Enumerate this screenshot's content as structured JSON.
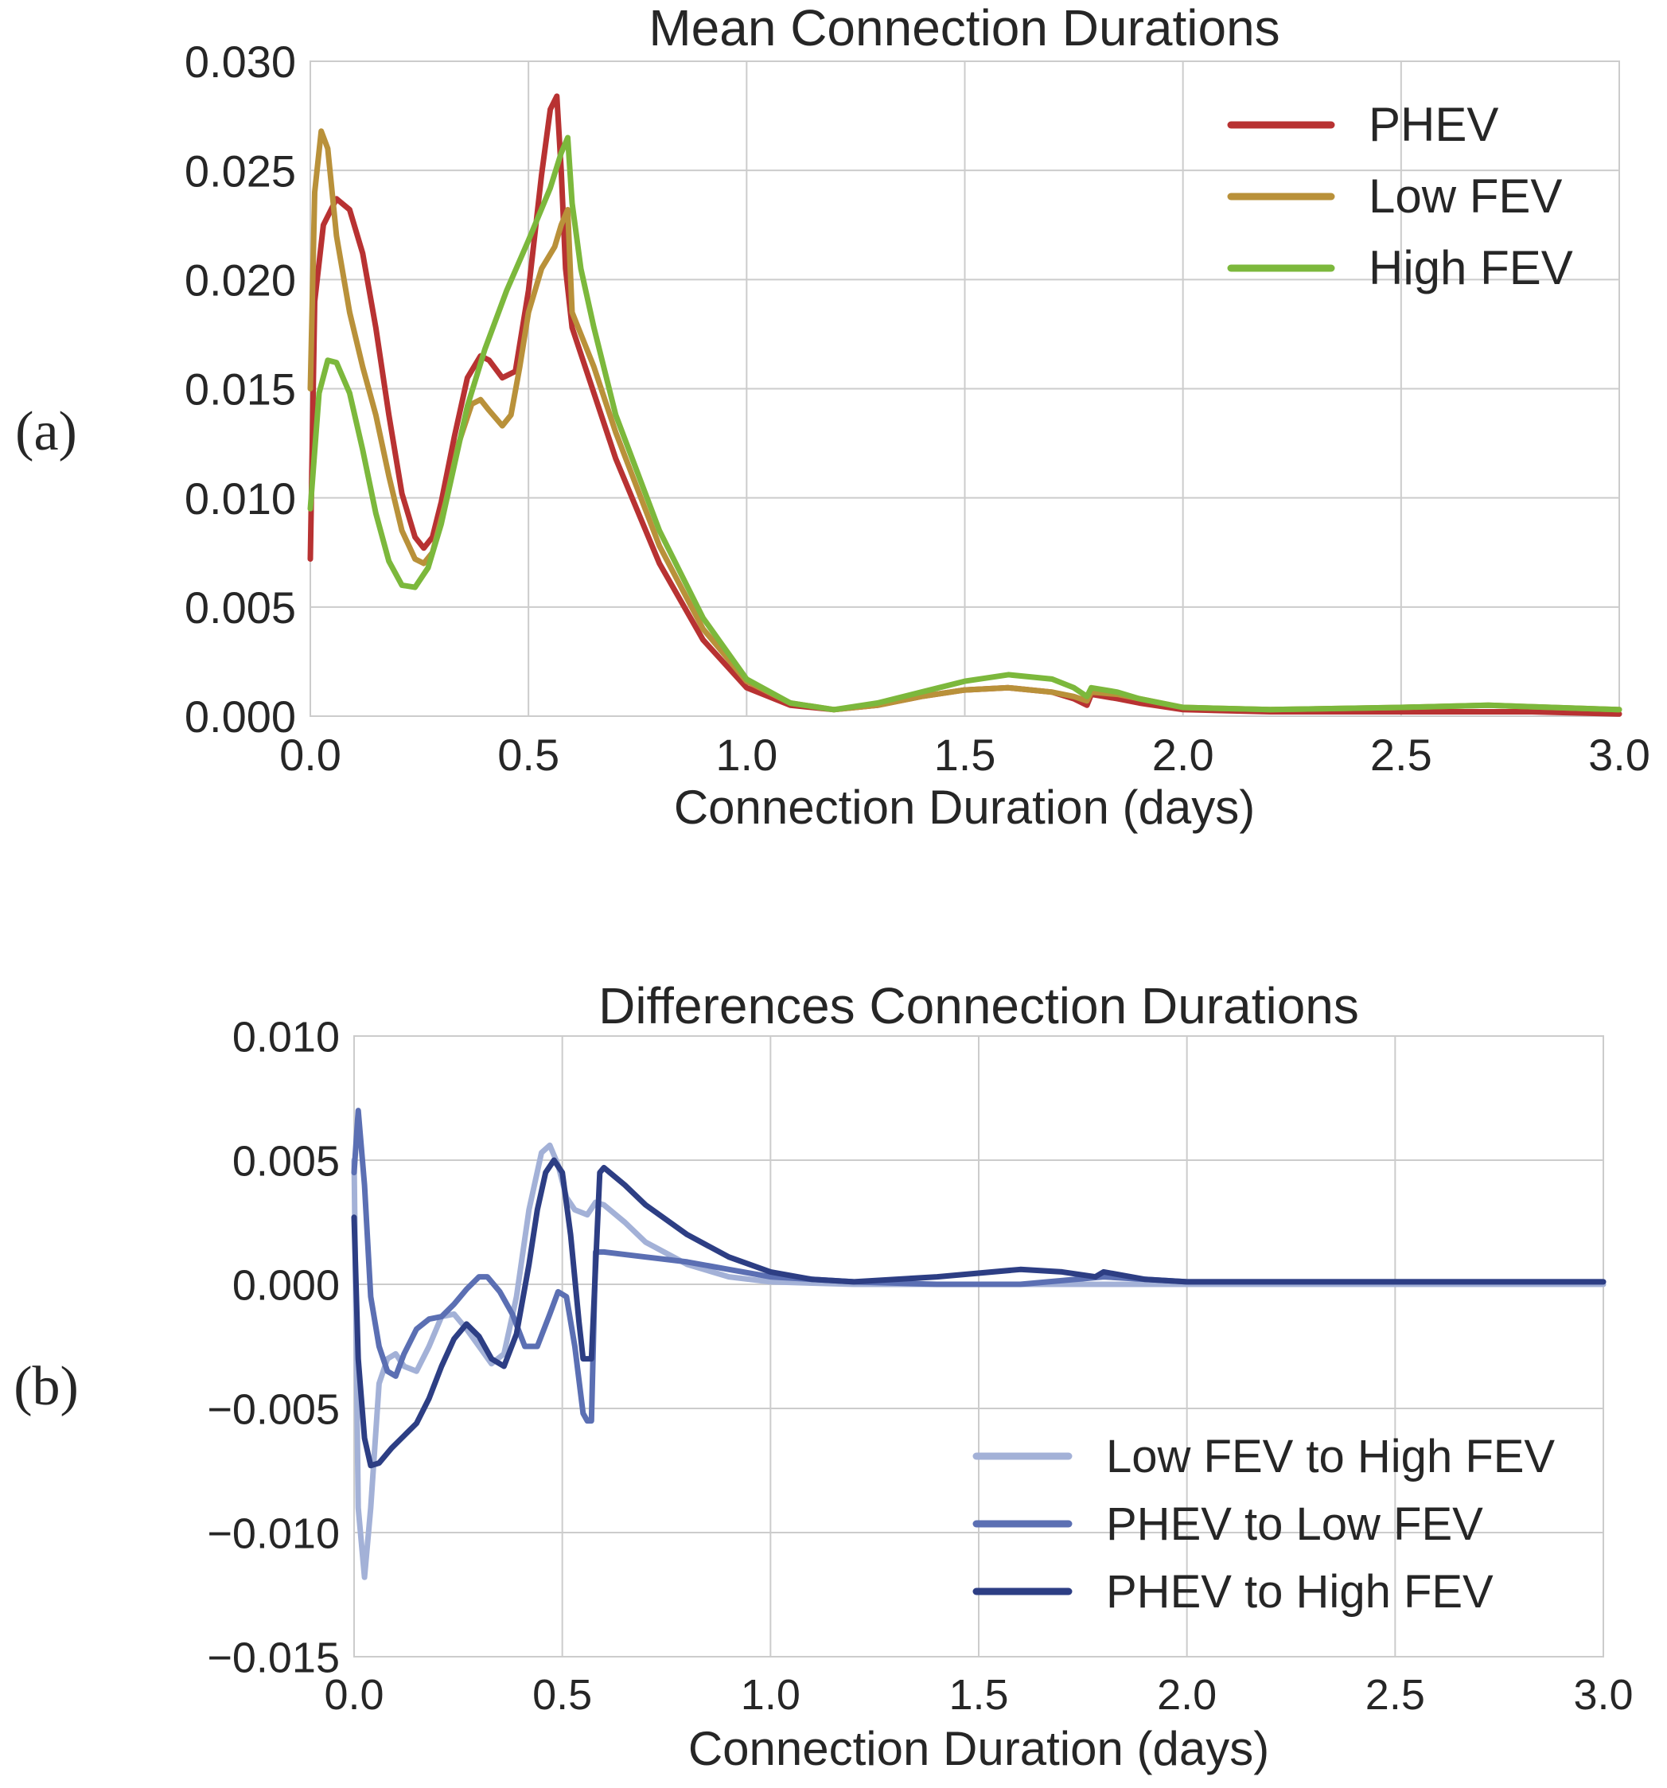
{
  "chart_data": [
    {
      "type": "line",
      "panel_label": "(a)",
      "title": "Mean Connection Durations",
      "xlabel": "Connection Duration (days)",
      "ylabel": "",
      "xlim": [
        0.0,
        3.0
      ],
      "ylim": [
        0.0,
        0.03
      ],
      "xticks": [
        "0.0",
        "0.5",
        "1.0",
        "1.5",
        "2.0",
        "2.5",
        "3.0"
      ],
      "yticks": [
        "0.000",
        "0.005",
        "0.010",
        "0.015",
        "0.020",
        "0.025",
        "0.030"
      ],
      "grid": true,
      "legend_position": "top-right",
      "series": [
        {
          "name": "PHEV",
          "color": "#b83232",
          "x": [
            0.0,
            0.01,
            0.03,
            0.06,
            0.09,
            0.12,
            0.15,
            0.18,
            0.21,
            0.24,
            0.26,
            0.28,
            0.3,
            0.33,
            0.36,
            0.39,
            0.41,
            0.44,
            0.47,
            0.5,
            0.53,
            0.55,
            0.565,
            0.575,
            0.585,
            0.6,
            0.65,
            0.7,
            0.8,
            0.9,
            1.0,
            1.1,
            1.2,
            1.3,
            1.4,
            1.5,
            1.6,
            1.7,
            1.75,
            1.78,
            1.79,
            1.85,
            1.9,
            2.0,
            2.2,
            2.5,
            2.8,
            3.0
          ],
          "y": [
            0.0072,
            0.019,
            0.0225,
            0.0237,
            0.0232,
            0.0212,
            0.0178,
            0.0138,
            0.0102,
            0.0082,
            0.0077,
            0.0082,
            0.0098,
            0.0128,
            0.0155,
            0.0165,
            0.0163,
            0.0155,
            0.0158,
            0.0195,
            0.0248,
            0.0278,
            0.0284,
            0.025,
            0.0205,
            0.0178,
            0.0148,
            0.0118,
            0.007,
            0.0035,
            0.0013,
            0.0005,
            0.0003,
            0.0005,
            0.0009,
            0.0012,
            0.0013,
            0.0011,
            0.0008,
            0.0005,
            0.001,
            0.0008,
            0.0006,
            0.0003,
            0.0002,
            0.0002,
            0.0002,
            0.0001
          ]
        },
        {
          "name": "Low FEV",
          "color": "#b9913a",
          "x": [
            0.0,
            0.01,
            0.025,
            0.04,
            0.06,
            0.09,
            0.12,
            0.15,
            0.18,
            0.21,
            0.24,
            0.26,
            0.28,
            0.31,
            0.34,
            0.37,
            0.39,
            0.41,
            0.44,
            0.46,
            0.48,
            0.5,
            0.53,
            0.56,
            0.575,
            0.59,
            0.6,
            0.65,
            0.7,
            0.8,
            0.9,
            1.0,
            1.1,
            1.2,
            1.3,
            1.4,
            1.5,
            1.6,
            1.7,
            1.75,
            1.78,
            1.79,
            1.85,
            1.9,
            2.0,
            2.2,
            2.5,
            2.7,
            3.0
          ],
          "y": [
            0.015,
            0.024,
            0.0268,
            0.026,
            0.022,
            0.0185,
            0.016,
            0.0138,
            0.011,
            0.0085,
            0.0072,
            0.007,
            0.0075,
            0.0098,
            0.0125,
            0.0143,
            0.0145,
            0.014,
            0.0133,
            0.0138,
            0.016,
            0.0185,
            0.0205,
            0.0215,
            0.0225,
            0.0232,
            0.0185,
            0.016,
            0.013,
            0.0078,
            0.004,
            0.0016,
            0.0006,
            0.0003,
            0.0005,
            0.0009,
            0.0012,
            0.0013,
            0.0011,
            0.0009,
            0.0007,
            0.0011,
            0.001,
            0.0008,
            0.0004,
            0.0003,
            0.0004,
            0.0005,
            0.0003
          ]
        },
        {
          "name": "High FEV",
          "color": "#7cb83c",
          "x": [
            0.0,
            0.02,
            0.04,
            0.06,
            0.09,
            0.12,
            0.15,
            0.18,
            0.21,
            0.24,
            0.27,
            0.3,
            0.33,
            0.36,
            0.4,
            0.45,
            0.5,
            0.55,
            0.575,
            0.59,
            0.6,
            0.62,
            0.65,
            0.7,
            0.8,
            0.9,
            1.0,
            1.1,
            1.2,
            1.3,
            1.4,
            1.5,
            1.6,
            1.7,
            1.75,
            1.78,
            1.79,
            1.85,
            1.9,
            2.0,
            2.2,
            2.5,
            2.7,
            3.0
          ],
          "y": [
            0.0095,
            0.0148,
            0.0163,
            0.0162,
            0.0148,
            0.0122,
            0.0093,
            0.0071,
            0.006,
            0.0059,
            0.0068,
            0.0088,
            0.0115,
            0.0142,
            0.0168,
            0.0195,
            0.0218,
            0.0242,
            0.0258,
            0.0265,
            0.0235,
            0.0205,
            0.0178,
            0.0138,
            0.0085,
            0.0045,
            0.0017,
            0.0006,
            0.0003,
            0.0006,
            0.0011,
            0.0016,
            0.0019,
            0.0017,
            0.0013,
            0.0009,
            0.0013,
            0.0011,
            0.0008,
            0.0004,
            0.0003,
            0.0004,
            0.0005,
            0.0003
          ]
        }
      ]
    },
    {
      "type": "line",
      "panel_label": "(b)",
      "title": "Differences Connection Durations",
      "xlabel": "Connection Duration (days)",
      "ylabel": "",
      "xlim": [
        0.0,
        3.0
      ],
      "ylim": [
        -0.015,
        0.01
      ],
      "xticks": [
        "0.0",
        "0.5",
        "1.0",
        "1.5",
        "2.0",
        "2.5",
        "3.0"
      ],
      "yticks": [
        "−0.015",
        "−0.010",
        "−0.005",
        "0.000",
        "0.005",
        "0.010"
      ],
      "grid": true,
      "legend_position": "bottom-right",
      "series": [
        {
          "name": "Low FEV to High FEV",
          "color": "#a3b1d7",
          "x": [
            0.0,
            0.01,
            0.025,
            0.04,
            0.06,
            0.08,
            0.1,
            0.12,
            0.15,
            0.18,
            0.21,
            0.24,
            0.27,
            0.3,
            0.33,
            0.36,
            0.39,
            0.42,
            0.45,
            0.47,
            0.49,
            0.51,
            0.53,
            0.56,
            0.58,
            0.6,
            0.65,
            0.7,
            0.8,
            0.9,
            1.0,
            1.2,
            1.5,
            1.8,
            2.0,
            2.5,
            3.0
          ],
          "y": [
            0.005,
            -0.009,
            -0.0118,
            -0.009,
            -0.004,
            -0.003,
            -0.0028,
            -0.0033,
            -0.0035,
            -0.0025,
            -0.0013,
            -0.0012,
            -0.0018,
            -0.0025,
            -0.0032,
            -0.0028,
            -0.0005,
            0.003,
            0.0053,
            0.0056,
            0.0048,
            0.0035,
            0.003,
            0.0028,
            0.0033,
            0.0032,
            0.0025,
            0.0017,
            0.0008,
            0.0003,
            0.0001,
            0.0,
            0.0,
            0.0,
            0.0,
            0.0,
            0.0
          ]
        },
        {
          "name": "PHEV to Low FEV",
          "color": "#5b6fb3",
          "x": [
            0.0,
            0.01,
            0.025,
            0.04,
            0.06,
            0.08,
            0.1,
            0.12,
            0.15,
            0.18,
            0.21,
            0.24,
            0.27,
            0.3,
            0.32,
            0.35,
            0.38,
            0.41,
            0.44,
            0.47,
            0.49,
            0.51,
            0.53,
            0.55,
            0.56,
            0.57,
            0.58,
            0.6,
            0.7,
            0.8,
            0.9,
            1.0,
            1.2,
            1.4,
            1.6,
            1.8,
            2.0,
            2.5,
            3.0
          ],
          "y": [
            0.0045,
            0.007,
            0.004,
            -0.0005,
            -0.0025,
            -0.0035,
            -0.0037,
            -0.0028,
            -0.0018,
            -0.0014,
            -0.0013,
            -0.0008,
            -0.0002,
            0.0003,
            0.0003,
            -0.0003,
            -0.0012,
            -0.0025,
            -0.0025,
            -0.0012,
            -0.0003,
            -0.0005,
            -0.0025,
            -0.0052,
            -0.0055,
            -0.0055,
            0.0013,
            0.0013,
            0.0011,
            0.0009,
            0.0006,
            0.0003,
            0.0001,
            0.0,
            0.0,
            0.0003,
            0.0001,
            0.0001,
            0.0001
          ]
        },
        {
          "name": "PHEV to High FEV",
          "color": "#2d3e84",
          "x": [
            0.0,
            0.01,
            0.025,
            0.04,
            0.06,
            0.09,
            0.12,
            0.15,
            0.18,
            0.21,
            0.24,
            0.27,
            0.3,
            0.33,
            0.36,
            0.39,
            0.42,
            0.44,
            0.46,
            0.48,
            0.5,
            0.52,
            0.54,
            0.55,
            0.56,
            0.57,
            0.59,
            0.6,
            0.65,
            0.7,
            0.8,
            0.9,
            1.0,
            1.1,
            1.2,
            1.4,
            1.6,
            1.7,
            1.78,
            1.8,
            1.9,
            2.0,
            2.5,
            3.0
          ],
          "y": [
            0.0027,
            -0.003,
            -0.0062,
            -0.0073,
            -0.0072,
            -0.0066,
            -0.0061,
            -0.0056,
            -0.0046,
            -0.0033,
            -0.0022,
            -0.0016,
            -0.0021,
            -0.003,
            -0.0033,
            -0.002,
            0.0008,
            0.003,
            0.0045,
            0.005,
            0.0045,
            0.002,
            -0.0015,
            -0.003,
            -0.003,
            -0.003,
            0.0045,
            0.0047,
            0.004,
            0.0032,
            0.002,
            0.0011,
            0.0005,
            0.0002,
            0.0001,
            0.0003,
            0.0006,
            0.0005,
            0.0003,
            0.0005,
            0.0002,
            0.0001,
            0.0001,
            0.0001
          ]
        }
      ]
    }
  ]
}
